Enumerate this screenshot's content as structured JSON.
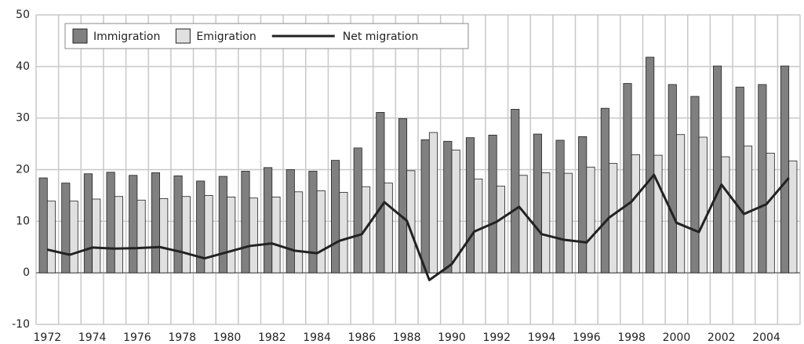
{
  "chart_data": {
    "type": "bar",
    "categories": [
      "1972",
      null,
      "1974",
      null,
      "1976",
      null,
      "1978",
      null,
      "1980",
      null,
      "1982",
      null,
      "1984",
      null,
      "1986",
      null,
      "1988",
      null,
      "1990",
      null,
      "1992",
      null,
      "1994",
      null,
      "1996",
      null,
      "1998",
      null,
      "2000",
      null,
      "2002",
      null,
      "2004",
      null
    ],
    "series": [
      {
        "name": "Immigration",
        "type": "bar",
        "color": "#808080",
        "values": [
          18.4,
          17.4,
          19.2,
          19.5,
          18.9,
          19.4,
          18.8,
          17.8,
          18.7,
          19.7,
          20.4,
          20.0,
          19.7,
          21.8,
          24.2,
          31.1,
          29.9,
          25.8,
          25.5,
          26.2,
          26.7,
          31.7,
          26.9,
          25.7,
          26.4,
          31.9,
          36.7,
          41.8,
          36.5,
          34.2,
          40.1,
          36.0,
          36.5,
          40.1
        ]
      },
      {
        "name": "Emigration",
        "type": "bar",
        "color": "#e0e0e0",
        "values": [
          13.9,
          13.9,
          14.3,
          14.8,
          14.1,
          14.4,
          14.8,
          15.0,
          14.7,
          14.5,
          14.7,
          15.7,
          15.9,
          15.6,
          16.7,
          17.4,
          19.8,
          27.2,
          23.8,
          18.2,
          16.8,
          18.9,
          19.4,
          19.3,
          20.5,
          21.2,
          22.9,
          22.8,
          26.8,
          26.3,
          22.5,
          24.6,
          23.2,
          21.7
        ]
      },
      {
        "name": "Net migration",
        "type": "line",
        "color": "#222222",
        "values": [
          4.5,
          3.5,
          4.9,
          4.7,
          4.8,
          5.0,
          4.0,
          2.8,
          4.0,
          5.2,
          5.7,
          4.3,
          3.8,
          6.2,
          7.5,
          13.7,
          10.1,
          -1.4,
          1.7,
          8.0,
          9.9,
          12.8,
          7.5,
          6.4,
          5.9,
          10.7,
          13.8,
          19.0,
          9.7,
          7.9,
          17.1,
          11.4,
          13.3,
          18.4
        ]
      }
    ],
    "ylim": [
      -10,
      50
    ],
    "yticks": [
      -10,
      0,
      10,
      20,
      30,
      40,
      50
    ],
    "grid": true,
    "legend": "upper left"
  }
}
